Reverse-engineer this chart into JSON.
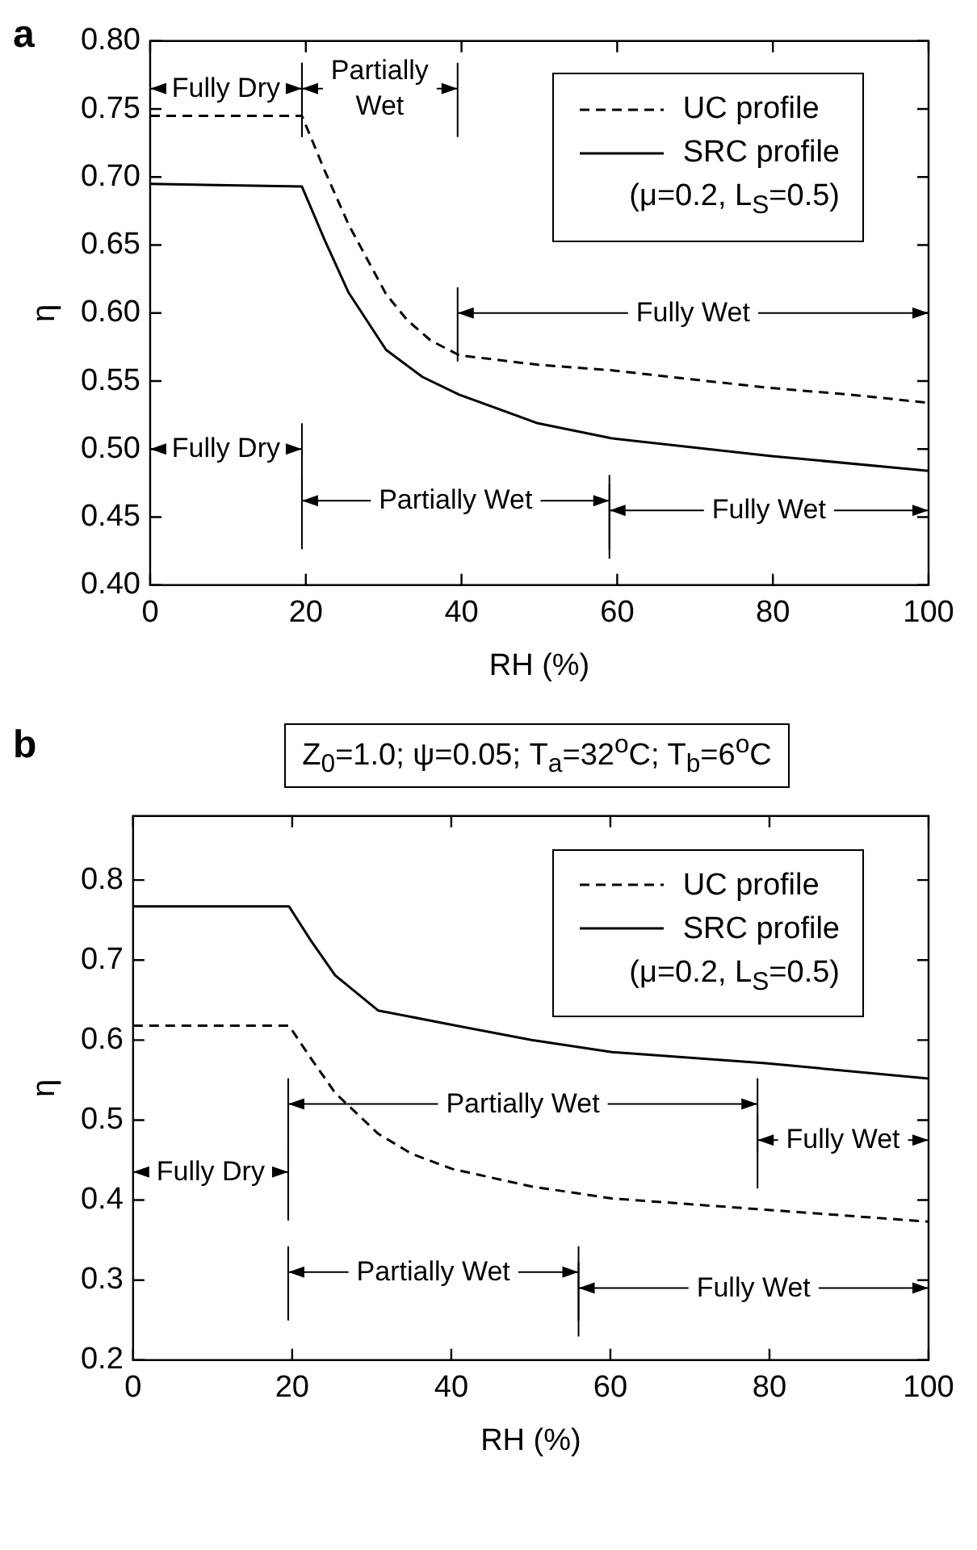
{
  "chart_data": [
    {
      "type": "line",
      "title": "a",
      "xlabel": "RH (%)",
      "ylabel": "η",
      "xlim": [
        0,
        100
      ],
      "xticks": [
        0,
        20,
        40,
        60,
        80,
        100
      ],
      "ylim": [
        0.4,
        0.8
      ],
      "yticks": [
        {
          "value": 0.4,
          "label": "0.40"
        },
        {
          "value": 0.45,
          "label": "0.45"
        },
        {
          "value": 0.5,
          "label": "0.50"
        },
        {
          "value": 0.55,
          "label": "0.55"
        },
        {
          "value": 0.6,
          "label": "0.60"
        },
        {
          "value": 0.65,
          "label": "0.65"
        },
        {
          "value": 0.7,
          "label": "0.70"
        },
        {
          "value": 0.75,
          "label": "0.75"
        },
        {
          "value": 0.8,
          "label": "0.80"
        }
      ],
      "legend": "top right",
      "series": [
        {
          "name": "UC profile",
          "color": "#000000",
          "line_style": "dashed",
          "x": [
            0,
            19.5,
            22.4,
            25.5,
            30.3,
            33,
            36,
            39.7,
            49.8,
            59.2,
            70,
            79.6,
            90,
            100
          ],
          "values": [
            0.745,
            0.745,
            0.705,
            0.665,
            0.614,
            0.595,
            0.58,
            0.569,
            0.562,
            0.558,
            0.551,
            0.545,
            0.54,
            0.534
          ]
        },
        {
          "name": "SRC profile",
          "color": "#000000",
          "line_style": "solid",
          "x": [
            0,
            19.5,
            22.4,
            25.5,
            30.3,
            35,
            39.7,
            49.8,
            59.2,
            79.6,
            100
          ],
          "values": [
            0.695,
            0.693,
            0.654,
            0.615,
            0.573,
            0.553,
            0.54,
            0.519,
            0.508,
            0.495,
            0.484
          ]
        }
      ],
      "annotations": [
        "(μ=0.2, L$_{S}$=0.5)",
        "Fully Dry",
        "Partially Wet",
        "Fully Wet",
        "Fully Dry",
        "Partially Wet",
        "Fully Wet"
      ]
    },
    {
      "type": "line",
      "title": "b",
      "subtitle": "Z$_{0}$=1.0; ψ=0.05; T$_{a}$=32$^{o}$C; T$_{b}$=6$^{o}$C",
      "xlabel": "RH (%)",
      "ylabel": "η",
      "xlim": [
        0,
        100
      ],
      "xticks": [
        0,
        20,
        40,
        60,
        80,
        100
      ],
      "ylim": [
        0.2,
        0.88
      ],
      "yticks": [
        0.2,
        0.3,
        0.4,
        0.5,
        0.6,
        0.7,
        0.8
      ],
      "legend": "top right",
      "series": [
        {
          "name": "UC profile",
          "color": "#000000",
          "line_style": "dashed",
          "x": [
            0,
            19.6,
            22.3,
            25.4,
            30.8,
            35,
            40.1,
            50.1,
            60.2,
            79.5,
            100
          ],
          "values": [
            0.618,
            0.618,
            0.578,
            0.534,
            0.483,
            0.458,
            0.439,
            0.417,
            0.402,
            0.388,
            0.373
          ]
        },
        {
          "name": "SRC profile",
          "color": "#000000",
          "line_style": "solid",
          "x": [
            0,
            19.6,
            22.3,
            25.4,
            30.8,
            40.1,
            50.1,
            60.2,
            79.5,
            100
          ],
          "values": [
            0.767,
            0.767,
            0.725,
            0.681,
            0.637,
            0.619,
            0.6,
            0.585,
            0.571,
            0.552
          ]
        }
      ],
      "annotations": [
        "(μ=0.2, L$_{S}$=0.5)",
        "Fully Dry",
        "Partially Wet",
        "Fully Wet",
        "Partially Wet",
        "Fully Wet"
      ]
    }
  ]
}
